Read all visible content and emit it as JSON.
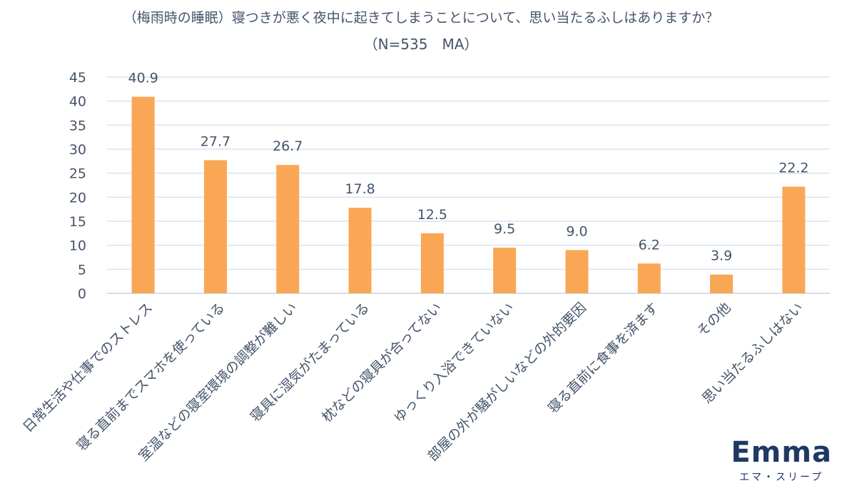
{
  "chart_data": {
    "type": "bar",
    "title": "（梅雨時の睡眠）寝つきが悪く夜中に起きてしまうことについて、思い当たるふしはありますか？",
    "subtitle": "（N=535　MA）",
    "categories": [
      "日常生活や仕事でのストレス",
      "寝る直前までスマホを使っている",
      "室温などの寝室環境の調整が難しい",
      "寝具に湿気がたまっている",
      "枕などの寝具が合ってない",
      "ゆっくり入浴できていない",
      "部屋の外が騒がしいなどの外的要因",
      "寝る直前に食事を済ます",
      "その他",
      "思い当たるふしはない"
    ],
    "values": [
      40.9,
      27.7,
      26.7,
      17.8,
      12.5,
      9.5,
      9.0,
      6.2,
      3.9,
      22.2
    ],
    "value_labels": [
      "40.9",
      "27.7",
      "26.7",
      "17.8",
      "12.5",
      "9.5",
      "9.0",
      "6.2",
      "3.9",
      "22.2"
    ],
    "ylim": [
      0,
      45
    ],
    "yticks": [
      "0",
      "5",
      "10",
      "15",
      "20",
      "25",
      "30",
      "35",
      "40",
      "45"
    ],
    "grid": true,
    "bar_color": "#f9a755",
    "text_color": "#44546a",
    "grid_color": "#d9e2f3"
  },
  "brand": {
    "logo": "Emma",
    "sub": "エマ・スリープ"
  }
}
